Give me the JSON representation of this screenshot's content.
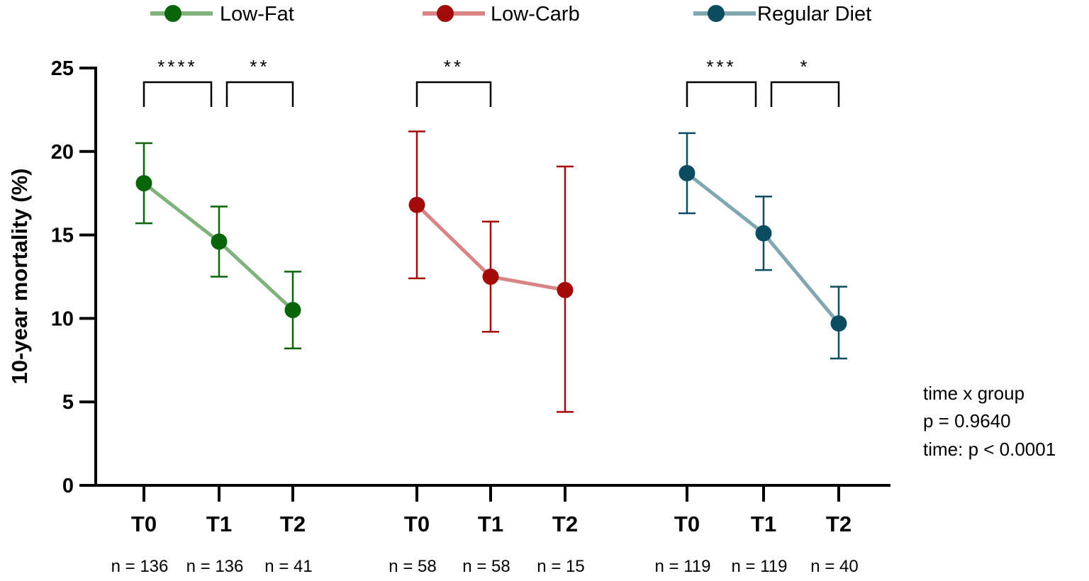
{
  "chart_data": {
    "type": "line",
    "ylabel": "10-year mortality (%)",
    "ylim": [
      0,
      25
    ],
    "yticks": [
      0,
      5,
      10,
      15,
      20,
      25
    ],
    "categories": [
      "T0",
      "T1",
      "T2"
    ],
    "legend_position": "top",
    "series": [
      {
        "name": "Low-Fat",
        "color": "#0a640a",
        "line_color": "#80b27c",
        "values": [
          18.1,
          14.6,
          10.5
        ],
        "err_upper": [
          20.5,
          16.7,
          12.8
        ],
        "err_lower": [
          15.7,
          12.5,
          8.2
        ],
        "n": [
          "n = 136",
          "n = 136",
          "n = 41"
        ],
        "significance": [
          {
            "from": 0,
            "to": 1,
            "label": "****"
          },
          {
            "from": 1,
            "to": 2,
            "label": "**"
          }
        ]
      },
      {
        "name": "Low-Carb",
        "color": "#a30a0a",
        "line_color": "#d98484",
        "values": [
          16.8,
          12.5,
          11.7
        ],
        "err_upper": [
          21.2,
          15.8,
          19.1
        ],
        "err_lower": [
          12.4,
          9.2,
          4.4
        ],
        "n": [
          "n = 58",
          "n = 58",
          "n = 15"
        ],
        "significance": [
          {
            "from": 0,
            "to": 1,
            "label": "**"
          }
        ]
      },
      {
        "name": "Regular Diet",
        "color": "#0b4c60",
        "line_color": "#80a6b2",
        "values": [
          18.7,
          15.1,
          9.7
        ],
        "err_upper": [
          21.1,
          17.3,
          11.9
        ],
        "err_lower": [
          16.3,
          12.9,
          7.6
        ],
        "n": [
          "n = 119",
          "n = 119",
          "n = 40"
        ],
        "significance": [
          {
            "from": 0,
            "to": 1,
            "label": "***"
          },
          {
            "from": 1,
            "to": 2,
            "label": "*"
          }
        ]
      }
    ],
    "annotations": [
      "time x group",
      "p = 0.9640",
      "time: p < 0.0001"
    ]
  }
}
